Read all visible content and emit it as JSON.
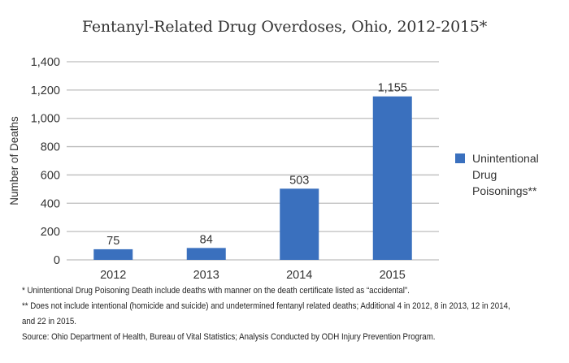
{
  "chart_data": {
    "type": "bar",
    "title": "Fentanyl-Related Drug Overdoses, Ohio, 2012-2015*",
    "xlabel": "",
    "ylabel": "Number of Deaths",
    "categories": [
      "2012",
      "2013",
      "2014",
      "2015"
    ],
    "series": [
      {
        "name": "Unintentional Drug Poisonings**",
        "values": [
          75,
          84,
          503,
          1155
        ],
        "labels": [
          "75",
          "84",
          "503",
          "1,155"
        ],
        "color": "#3a70be"
      }
    ],
    "ylim": [
      0,
      1400
    ],
    "yticks": [
      0,
      200,
      400,
      600,
      800,
      1000,
      1200,
      1400
    ],
    "ytick_labels": [
      "0",
      "200",
      "400",
      "600",
      "800",
      "1,000",
      "1,200",
      "1,400"
    ],
    "grid": true,
    "legend_position": "right"
  },
  "legend": {
    "label": "Unintentional\nDrug\nPoisonings**"
  },
  "notes": [
    "* Unintentional Drug Poisoning Death include deaths with manner on the death certificate listed as “accidental”.",
    "** Does not include intentional (homicide and suicide) and undetermined fentanyl related deaths; Additional 4  in 2012, 8 in 2013, 12 in  2014,",
    "and 22 in 2015.",
    "Source:  Ohio Department of Health, Bureau of Vital Statistics; Analysis Conducted by ODH Injury Prevention Program."
  ]
}
